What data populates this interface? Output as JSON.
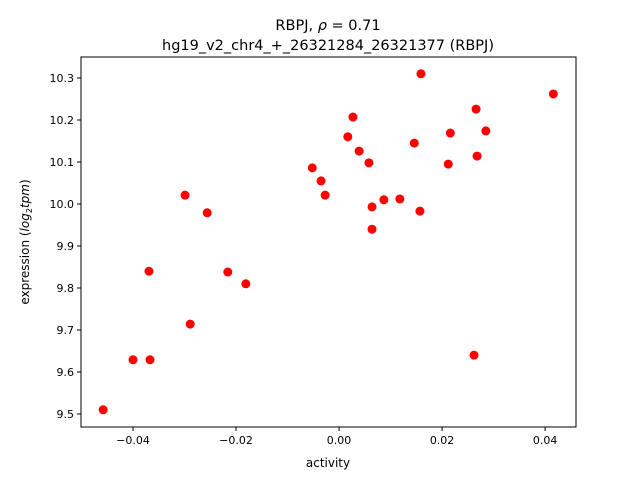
{
  "chart_data": {
    "type": "scatter",
    "title_line1_prefix": "RBPJ, ",
    "title_rho": "ρ",
    "title_line1_suffix": " = 0.71",
    "title_line2": "hg19_v2_chr4_+_26321284_26321377 (RBPJ)",
    "xlabel": "activity",
    "ylabel_prefix": "expression (",
    "ylabel_math": "log",
    "ylabel_sub": "2",
    "ylabel_math2": "tpm",
    "ylabel_suffix": ")",
    "xlim": [
      -0.0501,
      0.046
    ],
    "ylim": [
      9.469,
      10.35
    ],
    "xticks": [
      -0.04,
      -0.02,
      0.0,
      0.02,
      0.04
    ],
    "xtick_labels": [
      "−0.04",
      "−0.02",
      "0.00",
      "0.02",
      "0.04"
    ],
    "yticks": [
      9.5,
      9.6,
      9.7,
      9.8,
      9.9,
      10.0,
      10.1,
      10.2,
      10.3
    ],
    "ytick_labels": [
      "9.5",
      "9.6",
      "9.7",
      "9.8",
      "9.9",
      "10.0",
      "10.1",
      "10.2",
      "10.3"
    ],
    "marker_color": "#ff0000",
    "points": [
      [
        0.0159,
        10.31
      ],
      [
        0.0416,
        10.262
      ],
      [
        0.0266,
        10.226
      ],
      [
        0.0027,
        10.207
      ],
      [
        0.0285,
        10.174
      ],
      [
        0.0216,
        10.169
      ],
      [
        0.0017,
        10.16
      ],
      [
        0.0039,
        10.126
      ],
      [
        0.0146,
        10.145
      ],
      [
        0.0058,
        10.098
      ],
      [
        0.0212,
        10.095
      ],
      [
        0.0268,
        10.114
      ],
      [
        -0.0052,
        10.086
      ],
      [
        -0.0035,
        10.055
      ],
      [
        -0.0027,
        10.021
      ],
      [
        -0.0299,
        10.021
      ],
      [
        0.0064,
        9.993
      ],
      [
        0.0087,
        10.01
      ],
      [
        0.0118,
        10.012
      ],
      [
        0.0157,
        9.983
      ],
      [
        -0.0256,
        9.979
      ],
      [
        0.0064,
        9.94
      ],
      [
        -0.0369,
        9.84
      ],
      [
        -0.0216,
        9.838
      ],
      [
        -0.0181,
        9.81
      ],
      [
        -0.0289,
        9.714
      ],
      [
        -0.04,
        9.629
      ],
      [
        -0.0367,
        9.629
      ],
      [
        0.0262,
        9.64
      ],
      [
        -0.0458,
        9.51
      ]
    ]
  }
}
